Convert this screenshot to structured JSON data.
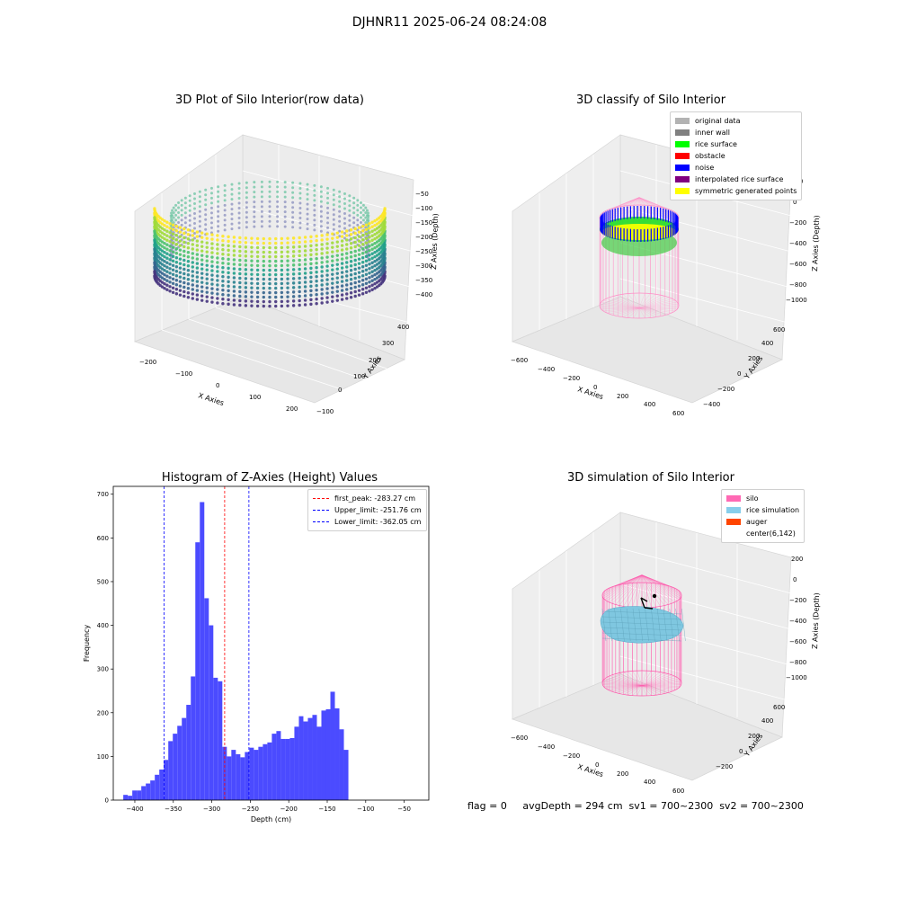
{
  "suptitle": "DJHNR11 2025-06-24 08:24:08",
  "panels": {
    "raw": {
      "title": "3D Plot of Silo Interior(row data)",
      "xlabel": "X Axies",
      "ylabel": "Y Axies",
      "zlabel": "Z Axies (Depth)",
      "xticks": [
        "−200",
        "−100",
        "0",
        "100",
        "200"
      ],
      "yticks": [
        "−100",
        "0",
        "100",
        "200",
        "300",
        "400"
      ],
      "zticks": [
        "−50",
        "−100",
        "−150",
        "−200",
        "−250",
        "−300",
        "−350",
        "−400"
      ]
    },
    "classify": {
      "title": "3D classify of Silo Interior",
      "xlabel": "X Axies",
      "ylabel": "Y Axies",
      "zlabel": "Z Axies (Depth)",
      "xticks": [
        "−600",
        "−400",
        "−200",
        "0",
        "200",
        "400",
        "600"
      ],
      "yticks": [
        "−400",
        "−200",
        "0",
        "200",
        "400",
        "600"
      ],
      "zticks": [
        "200",
        "0",
        "−200",
        "−400",
        "−600",
        "−800",
        "−1000"
      ],
      "legend": [
        {
          "label": "original data",
          "color": "#b3b3b3"
        },
        {
          "label": "inner wall",
          "color": "#808080"
        },
        {
          "label": "rice surface",
          "color": "#00ff00"
        },
        {
          "label": "obstacle",
          "color": "#ff0000"
        },
        {
          "label": "noise",
          "color": "#0000ff"
        },
        {
          "label": "interpolated rice surface",
          "color": "#800080"
        },
        {
          "label": "symmetric generated points",
          "color": "#ffff00"
        }
      ]
    },
    "simulation": {
      "title": "3D simulation of Silo Interior",
      "xlabel": "X Axies",
      "ylabel": "Y Axies",
      "zlabel": "Z Axies (Depth)",
      "xticks": [
        "−600",
        "−400",
        "−200",
        "0",
        "200",
        "400",
        "600"
      ],
      "yticks": [
        "−200",
        "0",
        "200",
        "400",
        "600"
      ],
      "zticks": [
        "200",
        "0",
        "−200",
        "−400",
        "−600",
        "−800",
        "−1000"
      ],
      "legend": [
        {
          "label": "silo",
          "color": "#ff69b4"
        },
        {
          "label": "rice simulation",
          "color": "#87ceeb"
        },
        {
          "label": "auger",
          "color": "#ff4500"
        },
        {
          "label": "center(6,142)",
          "color": "#ffffff"
        }
      ]
    }
  },
  "footer": {
    "flag": "flag = 0",
    "stats": "avgDepth = 294 cm  sv1 = 700~2300  sv2 = 700~2300"
  },
  "chart_data": [
    {
      "type": "bar",
      "title": "Histogram of Z-Axies (Height) Values",
      "xlabel": "Depth (cm)",
      "ylabel": "Frequency",
      "xlim": [
        -428,
        -18
      ],
      "ylim": [
        0,
        718
      ],
      "bin_width": 5.85,
      "bin_start": -415,
      "values": [
        12,
        10,
        22,
        22,
        32,
        38,
        45,
        58,
        70,
        92,
        135,
        152,
        170,
        188,
        218,
        283,
        590,
        682,
        462,
        400,
        280,
        272,
        122,
        100,
        115,
        105,
        98,
        110,
        120,
        115,
        122,
        128,
        132,
        152,
        158,
        140,
        140,
        142,
        168,
        192,
        180,
        188,
        195,
        168,
        205,
        208,
        248,
        210,
        162,
        115
      ],
      "xticks": [
        "−400",
        "−350",
        "−300",
        "−250",
        "−200",
        "−150",
        "−100",
        "−50"
      ],
      "xtick_values": [
        -400,
        -350,
        -300,
        -250,
        -200,
        -150,
        -100,
        -50
      ],
      "yticks": [
        "0",
        "100",
        "200",
        "300",
        "400",
        "500",
        "600",
        "700"
      ],
      "ytick_values": [
        0,
        100,
        200,
        300,
        400,
        500,
        600,
        700
      ],
      "bar_color": "#4b4bff",
      "lines": [
        {
          "name": "first_peak: -283.27 cm",
          "x": -283.27,
          "color": "#ff0000"
        },
        {
          "name": "Upper_limit: -251.76 cm",
          "x": -251.76,
          "color": "#0000ff"
        },
        {
          "name": "Lower_limit: -362.05 cm",
          "x": -362.05,
          "color": "#0000ff"
        }
      ],
      "legend_position": "upper right",
      "grid": false
    }
  ]
}
